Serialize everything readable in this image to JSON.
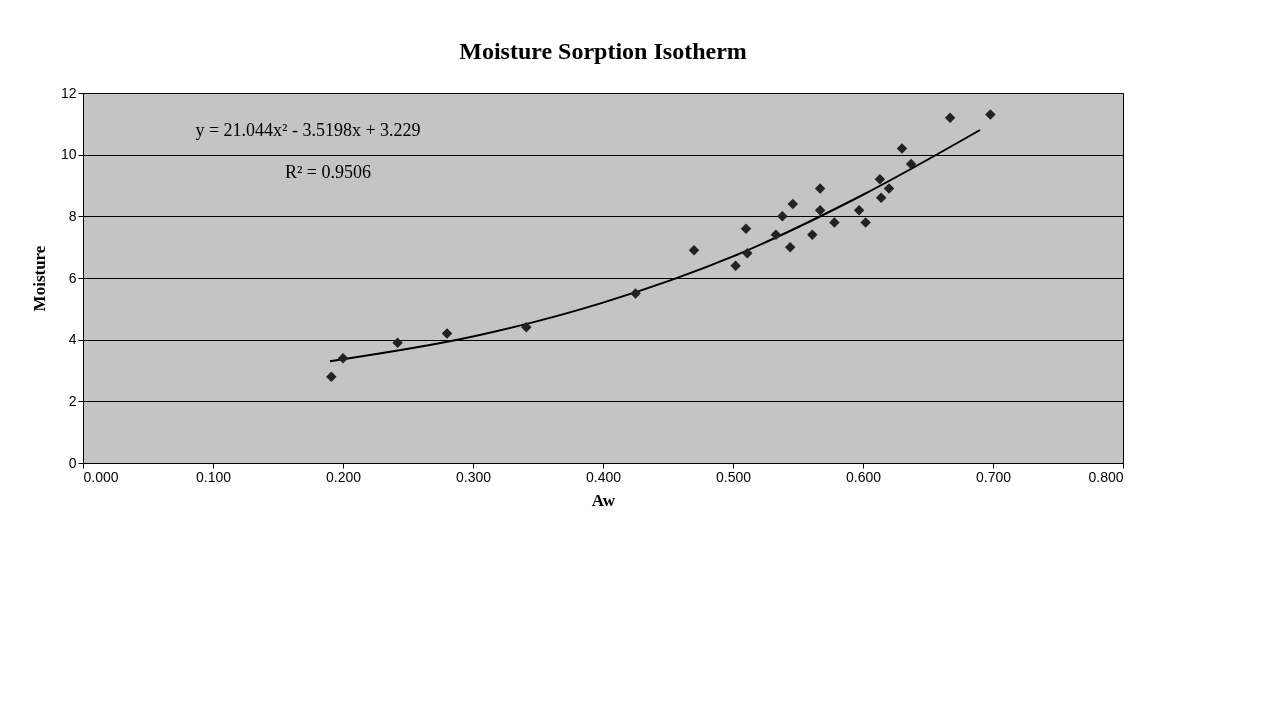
{
  "chart_data": {
    "type": "scatter",
    "title": "Moisture Sorption Isotherm",
    "xlabel": "Aw",
    "ylabel": "Moisture",
    "marker": "diamond",
    "grid": "y",
    "xlim": [
      0,
      0.8
    ],
    "ylim": [
      0,
      12
    ],
    "xticks": [
      {
        "value": 0,
        "label": "0.000"
      },
      {
        "value": 0.1,
        "label": "0.100"
      },
      {
        "value": 0.2,
        "label": "0.200"
      },
      {
        "value": 0.3,
        "label": "0.300"
      },
      {
        "value": 0.4,
        "label": "0.400"
      },
      {
        "value": 0.5,
        "label": "0.500"
      },
      {
        "value": 0.6,
        "label": "0.600"
      },
      {
        "value": 0.7,
        "label": "0.700"
      },
      {
        "value": 0.8,
        "label": "0.800"
      }
    ],
    "yticks": [
      0,
      2,
      4,
      6,
      8,
      10,
      12
    ],
    "annotations": [
      "y = 21.044x² - 3.5198x + 3.229",
      "R² = 0.9506"
    ],
    "series": [
      {
        "color": "#222222",
        "x": [
          0.191,
          0.2,
          0.242,
          0.28,
          0.341,
          0.425,
          0.47,
          0.502,
          0.511,
          0.51,
          0.533,
          0.544,
          0.538,
          0.546,
          0.561,
          0.567,
          0.567,
          0.578,
          0.597,
          0.602,
          0.613,
          0.62,
          0.614,
          0.63,
          0.637,
          0.667,
          0.698
        ],
        "values": [
          2.8,
          3.4,
          3.9,
          4.2,
          4.4,
          5.5,
          6.9,
          6.4,
          6.8,
          7.6,
          7.4,
          7.0,
          8.0,
          8.4,
          7.4,
          8.9,
          8.2,
          7.8,
          8.2,
          7.8,
          9.2,
          8.9,
          8.6,
          10.2,
          9.7,
          11.2,
          11.3
        ]
      },
      {
        "type": "line",
        "color": "#000000",
        "marker": "none",
        "line_style": "solid",
        "x": [
          0.19,
          0.3,
          0.4,
          0.5,
          0.6,
          0.69
        ],
        "values": [
          3.3,
          4.1,
          5.2,
          6.7,
          8.7,
          10.8
        ]
      }
    ]
  }
}
